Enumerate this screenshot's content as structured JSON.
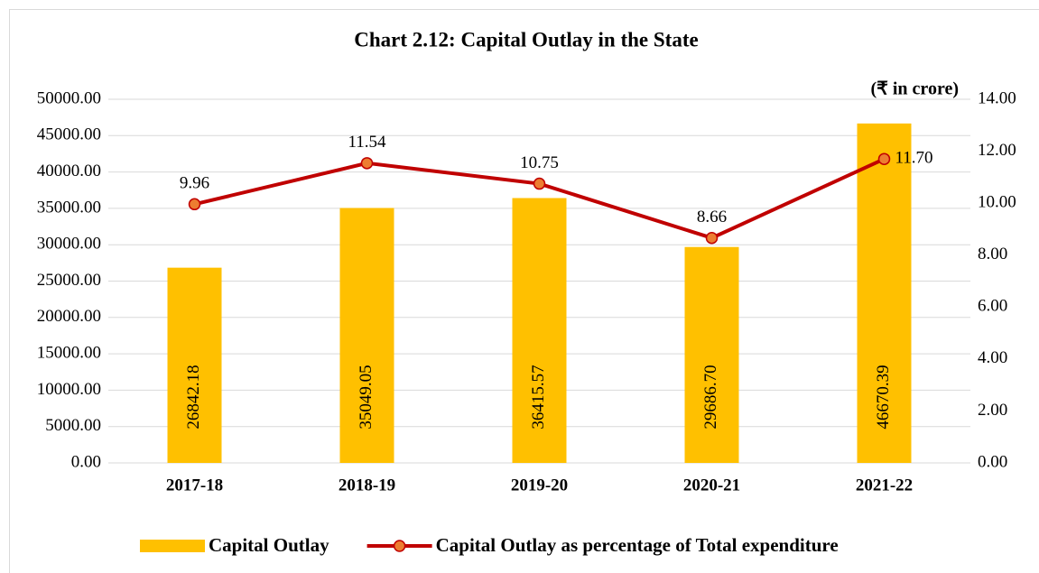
{
  "chart_data": {
    "type": "bar",
    "title": "Chart 2.12: Capital Outlay in the State",
    "subtitle": "(₹ in crore)",
    "categories": [
      "2017-18",
      "2018-19",
      "2019-20",
      "2020-21",
      "2021-22"
    ],
    "series": [
      {
        "name": "Capital Outlay",
        "type": "bar",
        "color": "#FFC000",
        "values": [
          26842.18,
          35049.05,
          36415.57,
          29686.7,
          46670.39
        ],
        "value_labels": [
          "26842.18",
          "35049.05",
          "36415.57",
          "29686.70",
          "46670.39"
        ]
      },
      {
        "name": "Capital Outlay as percentage of Total expenditure",
        "type": "line",
        "axis": "y2",
        "color": "#C00000",
        "marker_color": "#ED7D31",
        "values": [
          9.96,
          11.54,
          10.75,
          8.66,
          11.7
        ],
        "value_labels": [
          "9.96",
          "11.54",
          "10.75",
          "8.66",
          "11.70"
        ]
      }
    ],
    "ylim": [
      0,
      50000
    ],
    "yticks": [
      {
        "value": 0,
        "label": "0.00"
      },
      {
        "value": 5000,
        "label": "5000.00"
      },
      {
        "value": 10000,
        "label": "10000.00"
      },
      {
        "value": 15000,
        "label": "15000.00"
      },
      {
        "value": 20000,
        "label": "20000.00"
      },
      {
        "value": 25000,
        "label": "25000.00"
      },
      {
        "value": 30000,
        "label": "30000.00"
      },
      {
        "value": 35000,
        "label": "35000.00"
      },
      {
        "value": 40000,
        "label": "40000.00"
      },
      {
        "value": 45000,
        "label": "45000.00"
      },
      {
        "value": 50000,
        "label": "50000.00"
      }
    ],
    "y2lim": [
      0,
      14
    ],
    "y2ticks": [
      {
        "value": 0,
        "label": "0.00"
      },
      {
        "value": 2,
        "label": "2.00"
      },
      {
        "value": 4,
        "label": "4.00"
      },
      {
        "value": 6,
        "label": "6.00"
      },
      {
        "value": 8,
        "label": "8.00"
      },
      {
        "value": 10,
        "label": "10.00"
      },
      {
        "value": 12,
        "label": "12.00"
      },
      {
        "value": 14,
        "label": "14.00"
      }
    ],
    "grid": true,
    "legend": "bottom"
  }
}
